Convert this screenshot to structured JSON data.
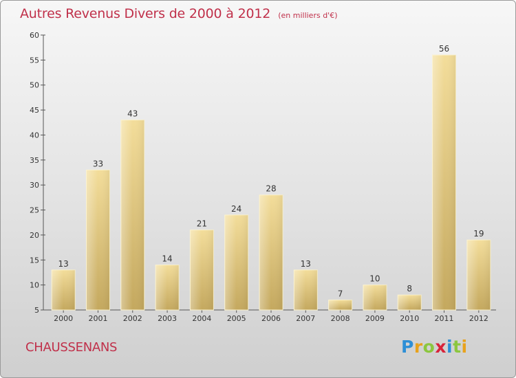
{
  "title": "Autres Revenus Divers de 2000 à 2012",
  "subtitle": "(en milliers d'€)",
  "place_name": "CHAUSSENANS",
  "logo": {
    "letters": [
      "P",
      "r",
      "o",
      "x",
      "i",
      "t",
      "i"
    ],
    "colors": [
      "#2e8fd6",
      "#e8a21c",
      "#8cc63f",
      "#d8233a",
      "#2e8fd6",
      "#8cc63f",
      "#e8a21c"
    ]
  },
  "colors": {
    "accent": "#c0304a",
    "bar_light": "#f3dd9a",
    "bar_dark": "#c4a85e"
  },
  "chart_data": {
    "type": "bar",
    "title": "Autres Revenus Divers de 2000 à 2012",
    "subtitle": "(en milliers d'€)",
    "categories": [
      "2000",
      "2001",
      "2002",
      "2003",
      "2004",
      "2005",
      "2006",
      "2007",
      "2008",
      "2009",
      "2010",
      "2011",
      "2012"
    ],
    "values": [
      13,
      33,
      43,
      14,
      21,
      24,
      28,
      13,
      7,
      10,
      8,
      56,
      19
    ],
    "ylim": [
      5,
      60
    ],
    "yticks": [
      5,
      10,
      15,
      20,
      25,
      30,
      35,
      40,
      45,
      50,
      55,
      60
    ],
    "grid": false,
    "data_labels": true
  }
}
